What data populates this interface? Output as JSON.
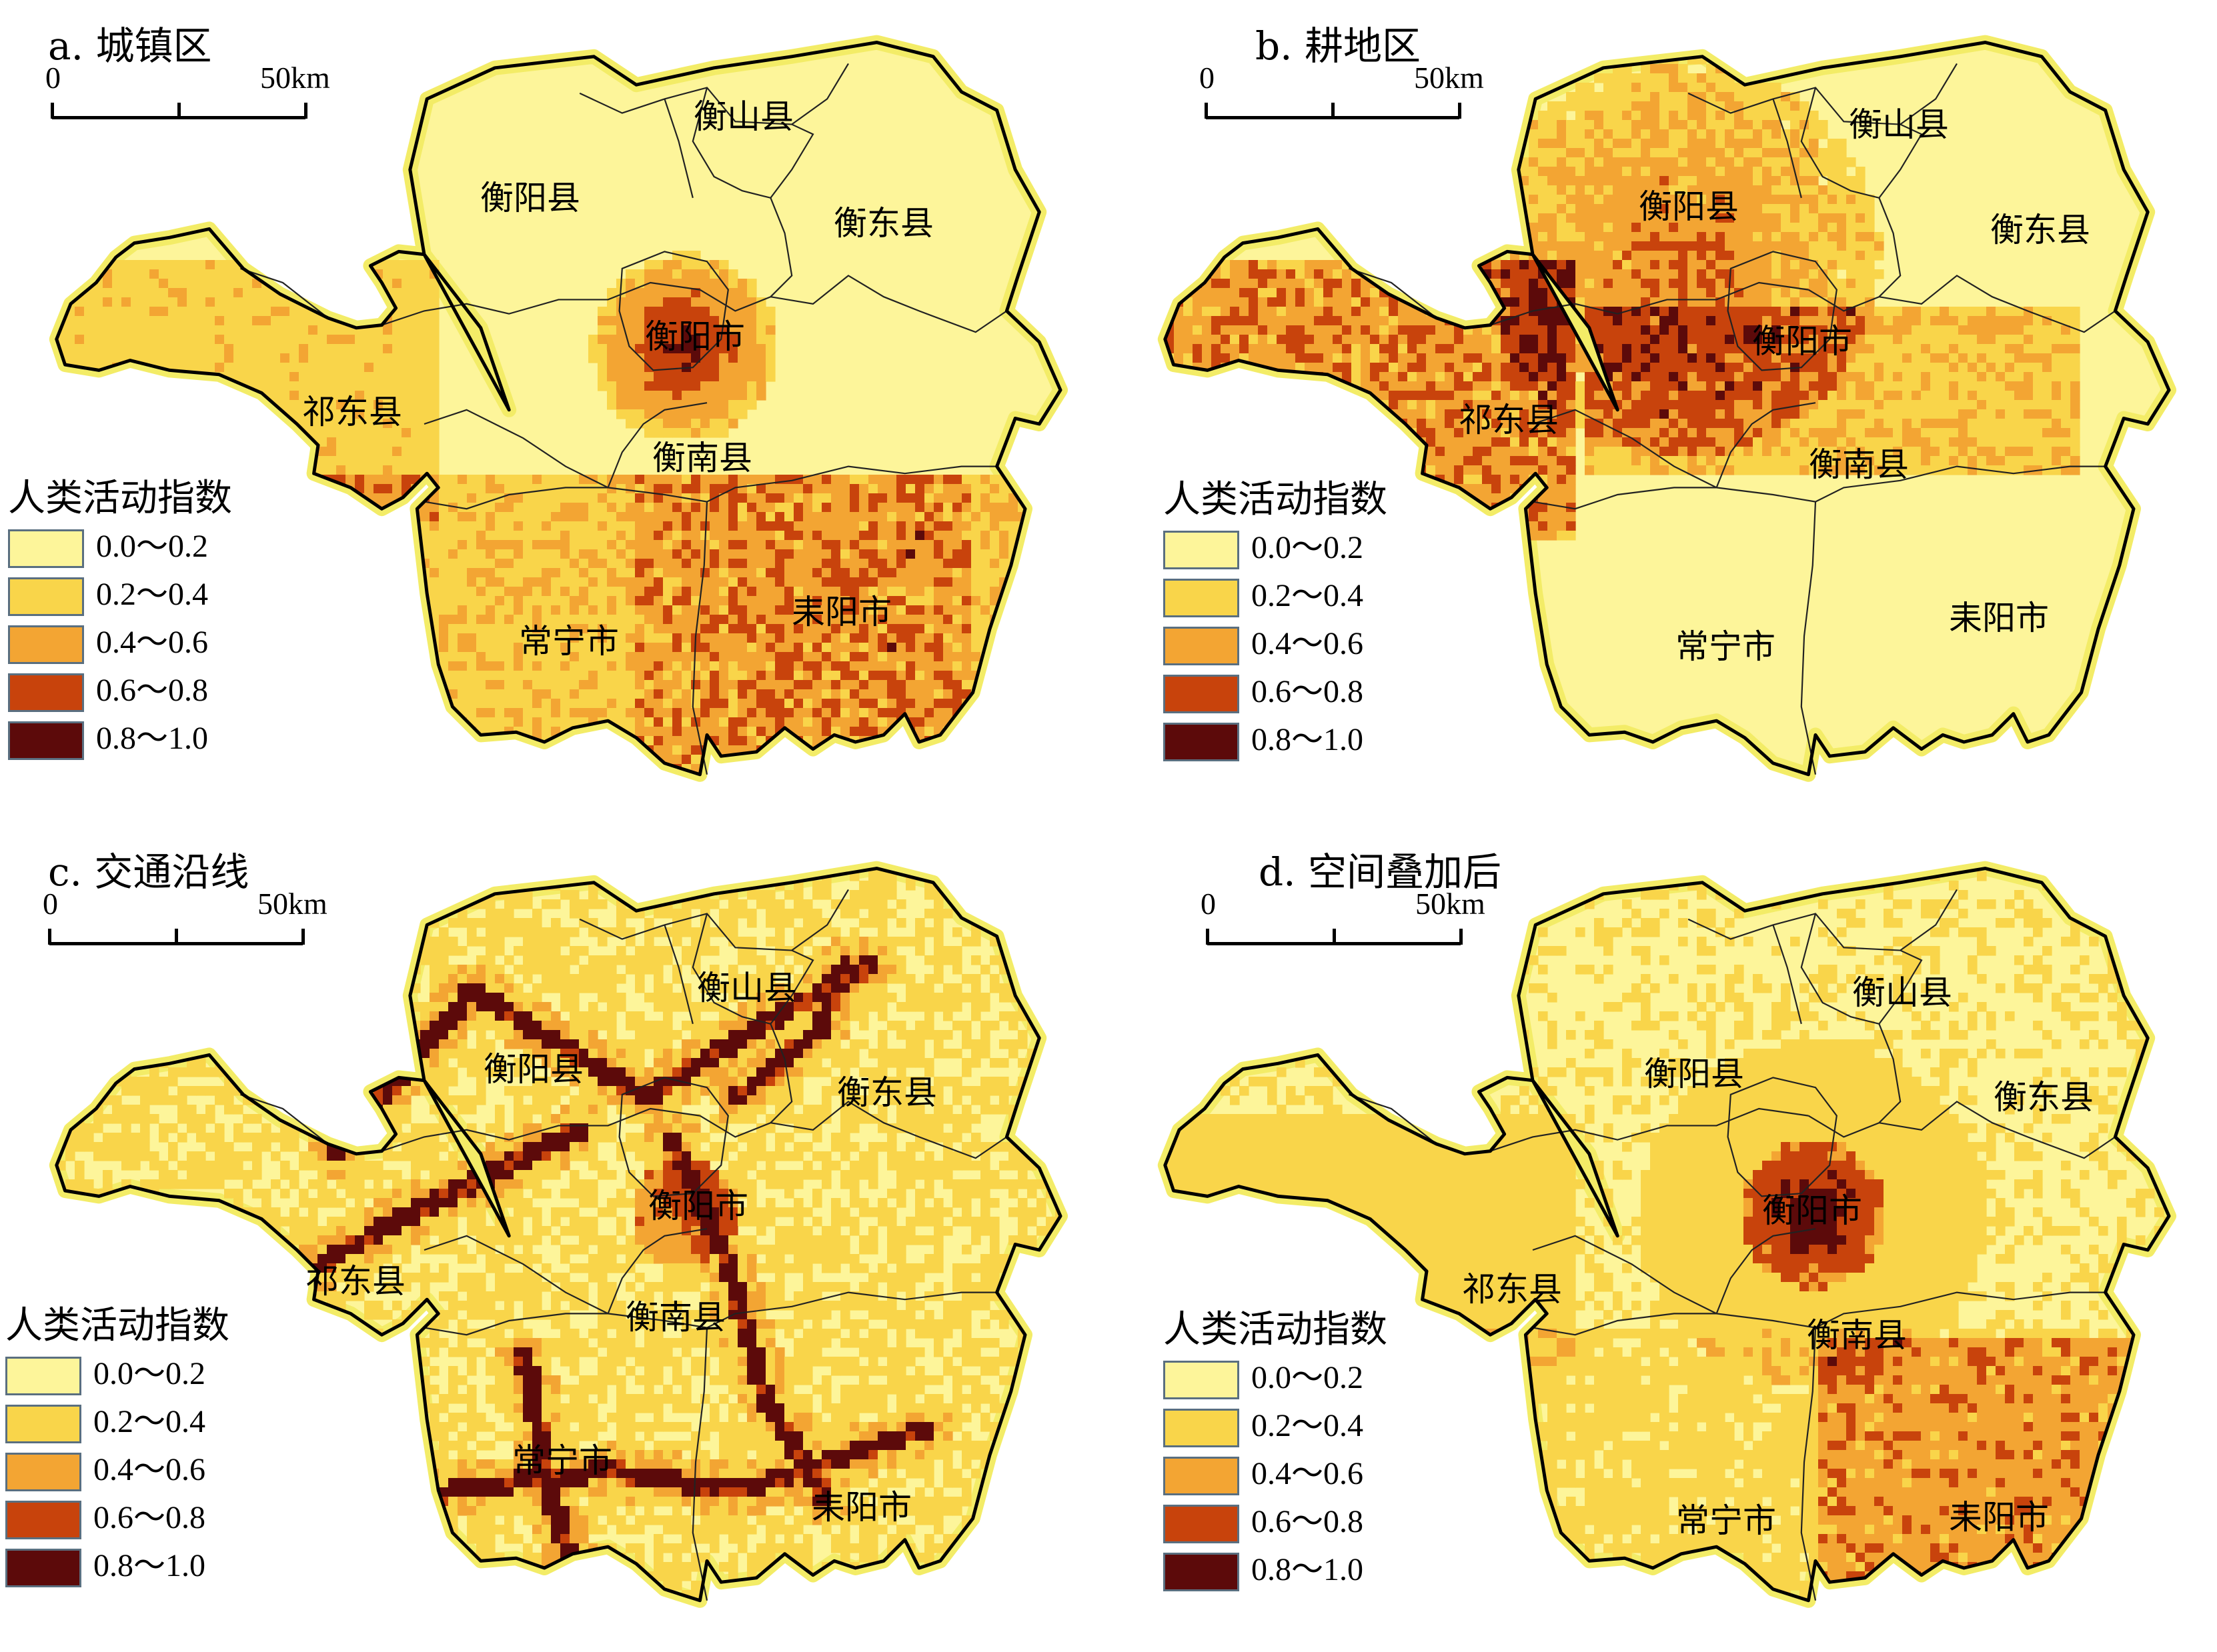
{
  "colors": {
    "class_0": "#fdf59a",
    "class_1": "#f9d54a",
    "class_2": "#f3a533",
    "class_3": "#c8430c",
    "class_4": "#5c0a0a",
    "halo": "#f3ec67",
    "boundary": "#000000"
  },
  "legend": {
    "title": "人类活动指数",
    "items": [
      {
        "label": "0.0～0.2",
        "color": "#fdf59a"
      },
      {
        "label": "0.2～0.4",
        "color": "#f9d54a"
      },
      {
        "label": "0.4～0.6",
        "color": "#f3a533"
      },
      {
        "label": "0.6～0.8",
        "color": "#c8430c"
      },
      {
        "label": "0.8～1.0",
        "color": "#5c0a0a"
      }
    ]
  },
  "scalebar": {
    "start": "0",
    "end": "50km"
  },
  "counties": {
    "hengshan": "衡山县",
    "hengyang_county": "衡阳县",
    "hengdong": "衡东县",
    "hengyang_city": "衡阳市",
    "qidong": "祁东县",
    "hengnan": "衡南县",
    "changning": "常宁市",
    "leiyang": "耒阳市"
  },
  "panels": [
    {
      "id": "a",
      "title": "a. 城镇区",
      "pattern": "urban"
    },
    {
      "id": "b",
      "title": "b. 耕地区",
      "pattern": "farmland"
    },
    {
      "id": "c",
      "title": "c. 交通沿线",
      "pattern": "transport"
    },
    {
      "id": "d",
      "title": "d. 空间叠加后",
      "pattern": "overlay"
    }
  ]
}
